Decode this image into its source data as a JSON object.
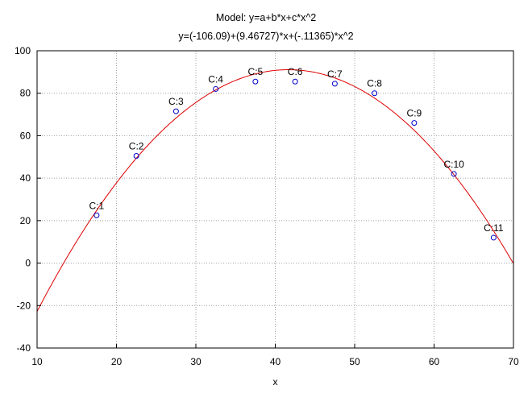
{
  "chart_data": {
    "type": "scatter",
    "title": "Model: y=a+b*x+c*x^2",
    "subtitle": "y=(-106.09)+(9.46727)*x+(-.11365)*x^2",
    "xlabel": "x",
    "ylabel": "",
    "xlim": [
      10,
      70
    ],
    "ylim": [
      -40,
      100
    ],
    "xticks": [
      10,
      20,
      30,
      40,
      50,
      60,
      70
    ],
    "yticks": [
      -40,
      -20,
      0,
      20,
      40,
      60,
      80,
      100
    ],
    "grid": true,
    "points": [
      {
        "label": "C:1",
        "x": 17.5,
        "y": 22.5
      },
      {
        "label": "C:2",
        "x": 22.5,
        "y": 50.5
      },
      {
        "label": "C:3",
        "x": 27.5,
        "y": 71.5
      },
      {
        "label": "C:4",
        "x": 32.5,
        "y": 82.0
      },
      {
        "label": "C:5",
        "x": 37.5,
        "y": 85.5
      },
      {
        "label": "C:6",
        "x": 42.5,
        "y": 85.5
      },
      {
        "label": "C:7",
        "x": 47.5,
        "y": 84.5
      },
      {
        "label": "C:8",
        "x": 52.5,
        "y": 80.0
      },
      {
        "label": "C:9",
        "x": 57.5,
        "y": 66.0
      },
      {
        "label": "C:10",
        "x": 62.5,
        "y": 42.0
      },
      {
        "label": "C:11",
        "x": 67.5,
        "y": 12.0
      }
    ],
    "fit": {
      "a": -106.09,
      "b": 9.46727,
      "c": -0.11365
    },
    "colors": {
      "points": "#0000cc",
      "fit_line": "#dd0000",
      "grid": "#a0a0a0",
      "axes": "#000000"
    }
  }
}
